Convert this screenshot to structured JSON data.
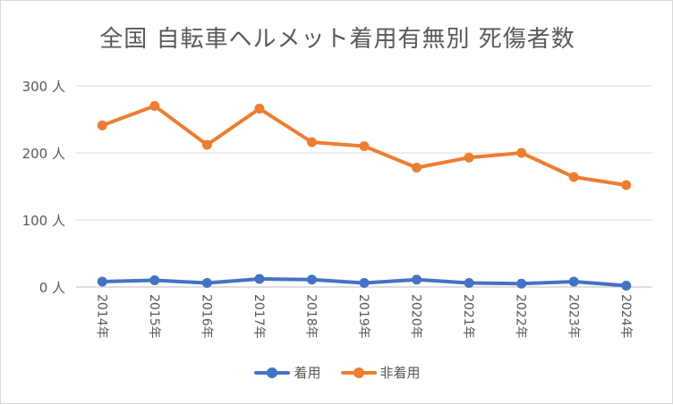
{
  "chart_data": {
    "type": "line",
    "title": "全国 自転車ヘルメット着用有無別 死傷者数",
    "categories": [
      "2014年",
      "2015年",
      "2016年",
      "2017年",
      "2018年",
      "2019年",
      "2020年",
      "2021年",
      "2022年",
      "2023年",
      "2024年"
    ],
    "series": [
      {
        "name": "着用",
        "color": "#4472c4",
        "values": [
          8,
          10,
          6,
          12,
          11,
          6,
          11,
          6,
          5,
          8,
          2
        ]
      },
      {
        "name": "非着用",
        "color": "#ed7d31",
        "values": [
          241,
          270,
          212,
          266,
          216,
          210,
          178,
          193,
          200,
          164,
          152
        ]
      }
    ],
    "yticks": [
      "0 人",
      "100 人",
      "200 人",
      "300 人"
    ],
    "ylim": [
      0,
      300
    ],
    "grid": true,
    "legend_position": "bottom"
  }
}
